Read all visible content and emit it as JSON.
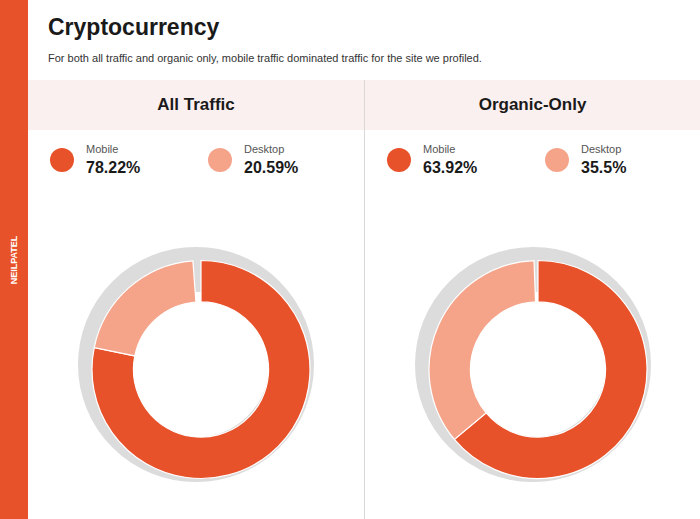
{
  "title": "Cryptocurrency",
  "subtitle": "For both all traffic and organic only, mobile traffic dominated traffic for the site we profiled.",
  "annotations": [
    "NEILPATEL"
  ],
  "chart_data": [
    {
      "type": "pie",
      "title": "All Traffic",
      "categories": [
        "Mobile",
        "Desktop",
        null
      ],
      "values": [
        78.22,
        20.59,
        1.19
      ],
      "value_labels": [
        "78.22%",
        "20.59%",
        null
      ],
      "colors": [
        "#E8522A",
        "#F5A48A",
        "none"
      ]
    },
    {
      "type": "pie",
      "title": "Organic-Only",
      "categories": [
        "Mobile",
        "Desktop",
        null
      ],
      "values": [
        63.92,
        35.5,
        0.58
      ],
      "value_labels": [
        "63.92%",
        "35.5%",
        null
      ],
      "colors": [
        "#E8522A",
        "#F5A48A",
        "none"
      ]
    }
  ]
}
